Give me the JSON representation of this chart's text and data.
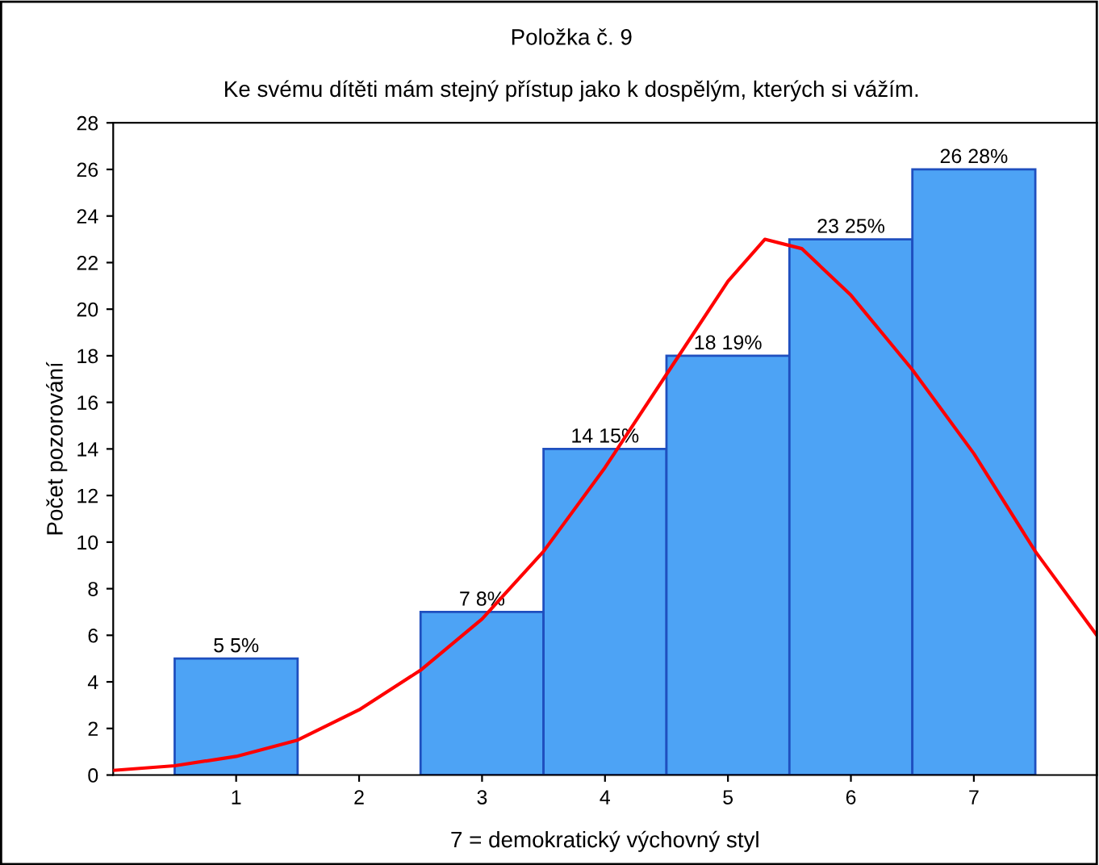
{
  "chart_data": {
    "type": "histogram",
    "title": "Položka č. 9",
    "subtitle": "Ke svému dítěti mám stejný přístup jako k dospělým, kterých si vážím.",
    "xlabel": "7 = demokratický výchovný styl",
    "ylabel": "Počet pozorování",
    "bins": [
      0.5,
      1.5,
      2.5,
      3.5,
      4.5,
      5.5,
      6.5,
      7.5
    ],
    "values": [
      5,
      0,
      7,
      14,
      18,
      23,
      26
    ],
    "value_labels": [
      "5 5%",
      null,
      "7 8%",
      "14 15%",
      "18 19%",
      "23 25%",
      "26 28%"
    ],
    "color": "#4da3f5",
    "series": [
      {
        "type": "line",
        "color": "#ff0000",
        "x": [
          0,
          0.5,
          1,
          1.5,
          2,
          2.5,
          3,
          3.5,
          4,
          4.5,
          5,
          5.3,
          5.6,
          6,
          6.5,
          7,
          7.5,
          8
        ],
        "values": [
          0.2,
          0.4,
          0.8,
          1.5,
          2.8,
          4.5,
          6.7,
          9.6,
          13.2,
          17.2,
          21.2,
          23,
          22.6,
          20.6,
          17.4,
          13.8,
          9.6,
          6
        ]
      }
    ],
    "xlim": [
      0,
      8
    ],
    "ylim": [
      0,
      28
    ],
    "xticks": [
      1,
      2,
      3,
      4,
      5,
      6,
      7
    ],
    "yticks": [
      0,
      2,
      4,
      6,
      8,
      10,
      12,
      14,
      16,
      18,
      20,
      22,
      24,
      26,
      28
    ],
    "grid": false,
    "legend": false
  }
}
